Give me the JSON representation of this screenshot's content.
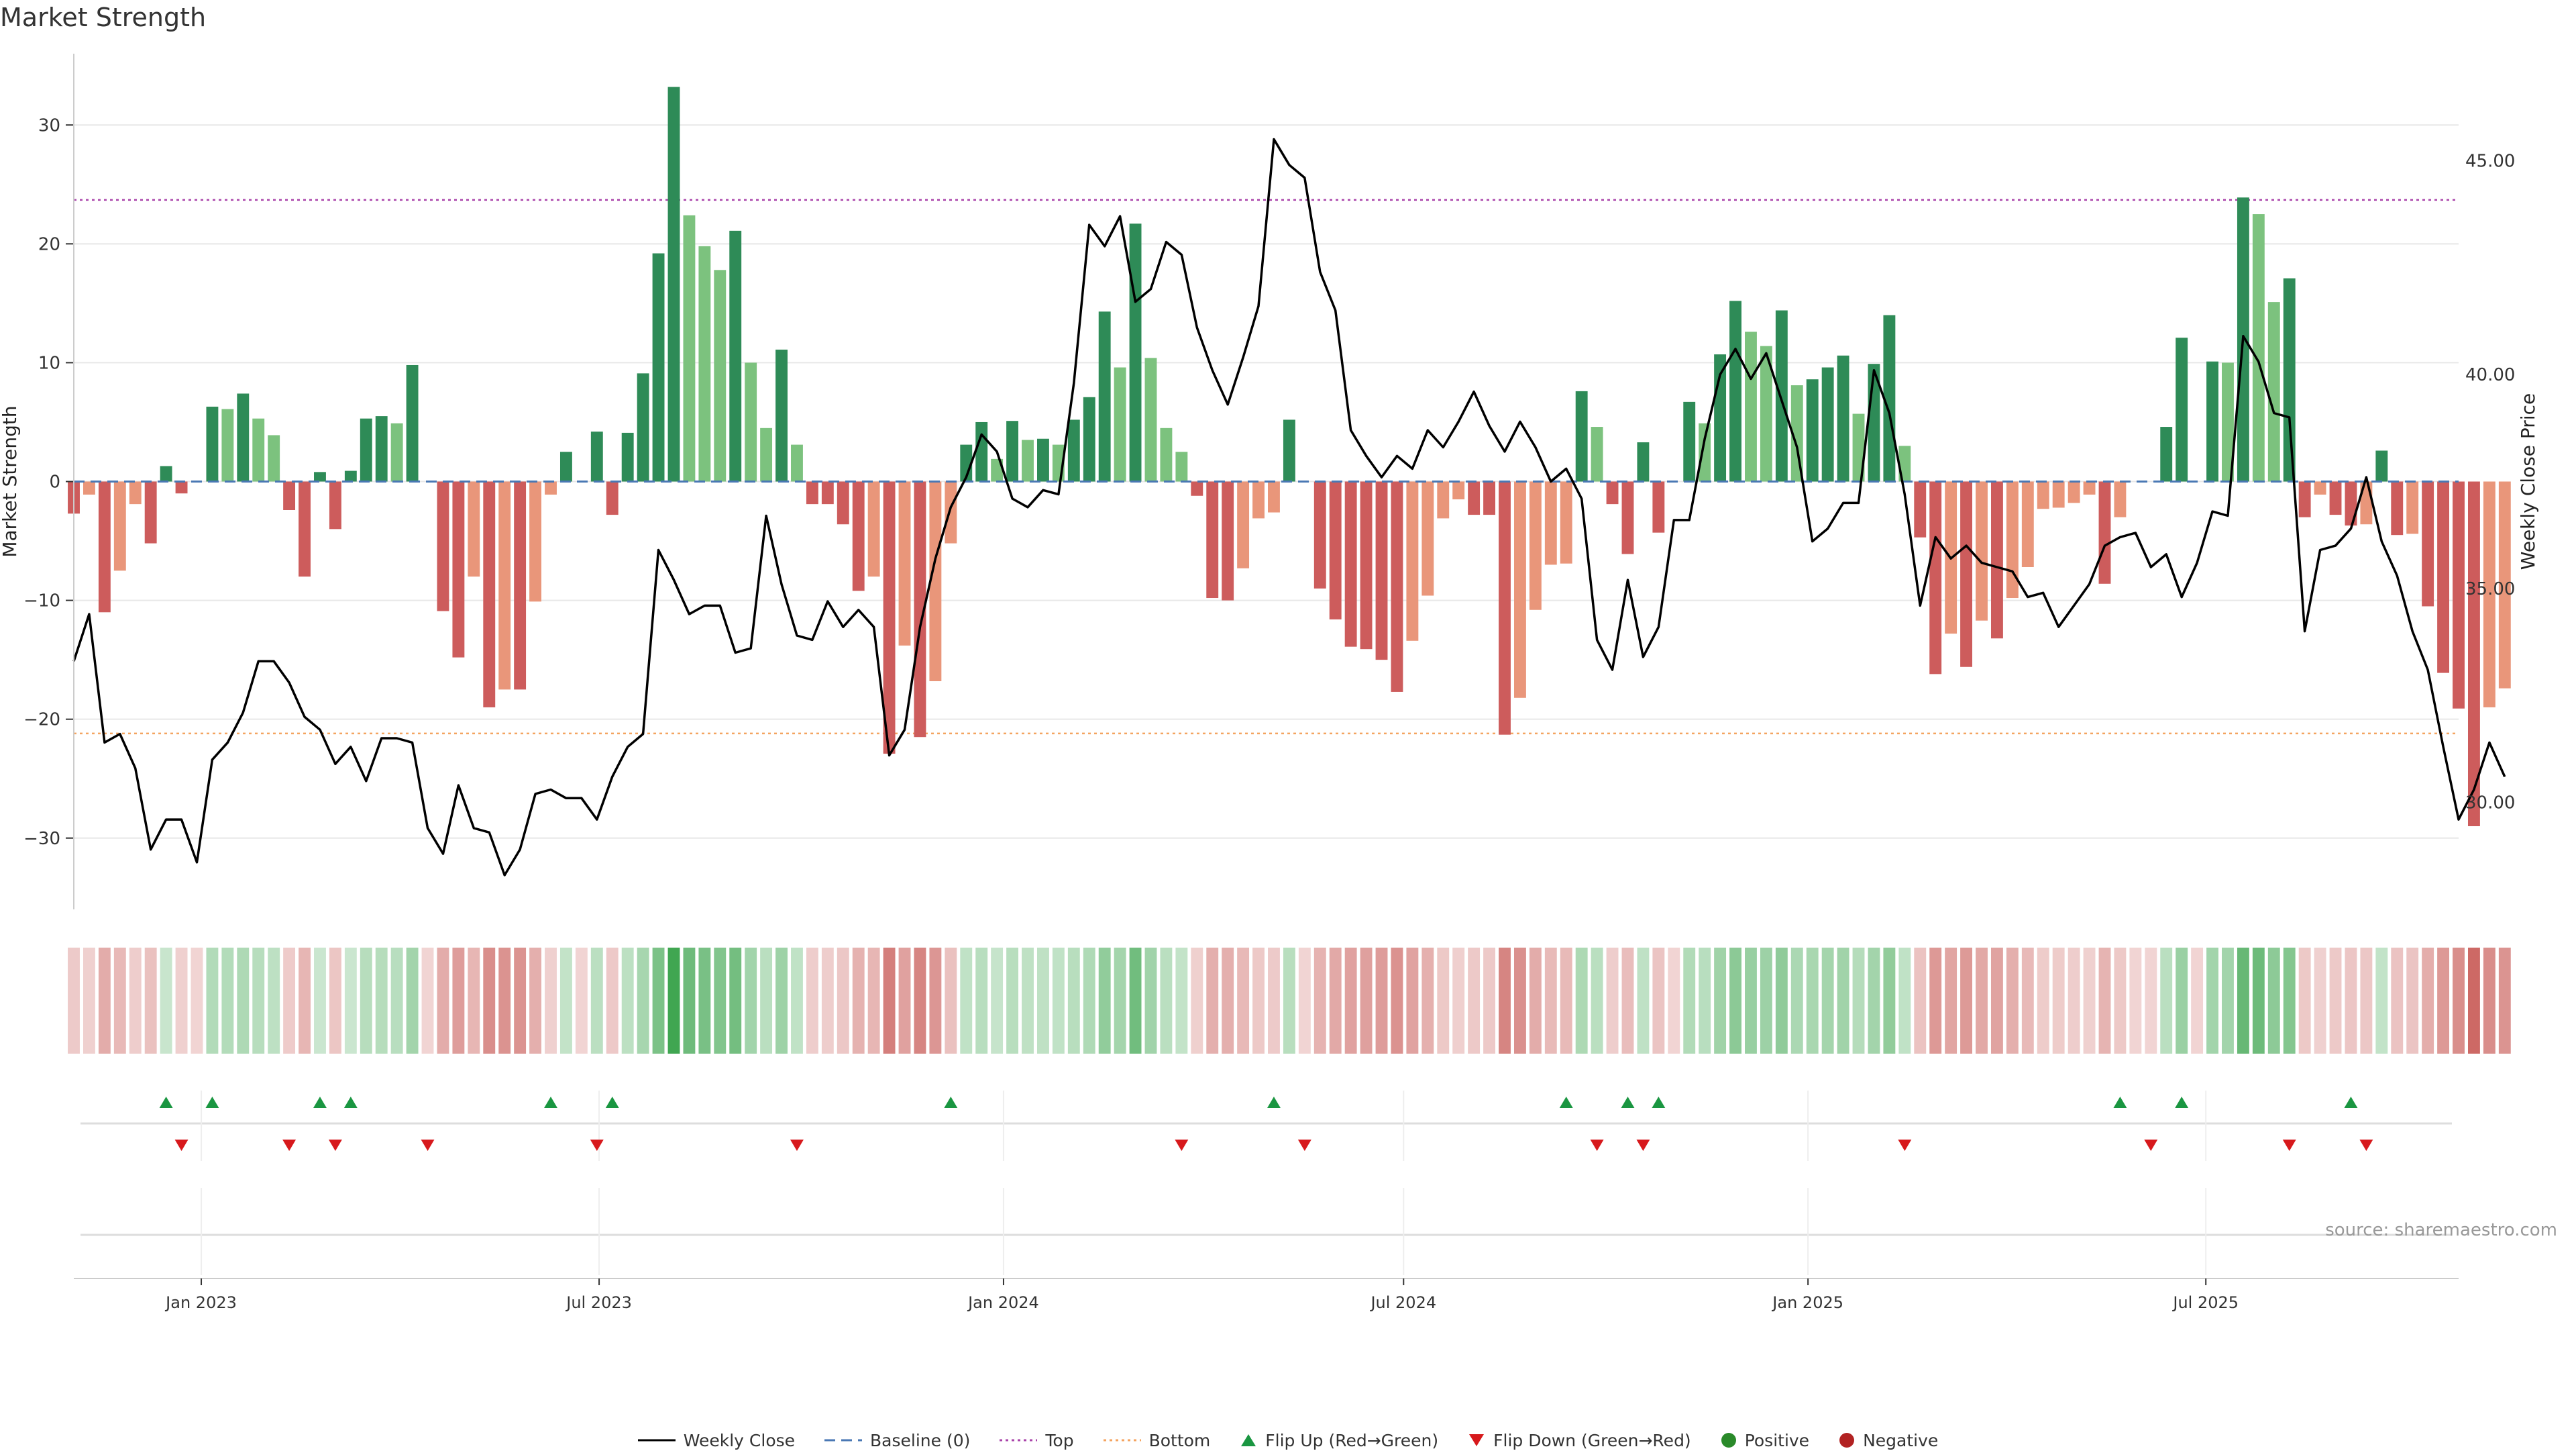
{
  "title": "Market Strength",
  "source_label": "source: sharemaestro.com",
  "colors": {
    "pos_dark": "#2e8b57",
    "pos_light": "#7cc27e",
    "neg_dark": "#cd5c5c",
    "neg_light": "#e9967a",
    "price_line": "#000000",
    "top_line": "#aa44aa",
    "bottom_line": "#f4a460",
    "baseline": "#4a78b4",
    "flip_up": "#1a9641",
    "flip_down": "#d7191c",
    "positive_dot": "#2a8a2a",
    "negative_dot": "#b22222"
  },
  "chart_data": {
    "type": "bar+line",
    "title": "Market Strength",
    "ylabel": "Market Strength",
    "y2label": "Weekly Close Price",
    "ylim": [
      -36,
      36
    ],
    "y_ticks": [
      30,
      20,
      10,
      0,
      -10,
      -20,
      -30
    ],
    "y_tick_labels": [
      "30",
      "20",
      "10",
      "0",
      "−10",
      "−20",
      "−30"
    ],
    "y2lim": [
      27.5,
      47.5
    ],
    "y2_ticks": [
      45.0,
      40.0,
      35.0,
      30.0
    ],
    "y2_tick_labels": [
      "45.00",
      "40.00",
      "35.00",
      "30.00"
    ],
    "top_threshold": 23.7,
    "bottom_threshold": -21.2,
    "x_start": "2022-11-04",
    "x_end": "2025-10-24",
    "x_ticks": [
      {
        "date": "2023-01-01",
        "label": "Jan 2023"
      },
      {
        "date": "2023-07-01",
        "label": "Jul 2023"
      },
      {
        "date": "2024-01-01",
        "label": "Jan 2024"
      },
      {
        "date": "2024-07-01",
        "label": "Jul 2024"
      },
      {
        "date": "2025-01-01",
        "label": "Jan 2025"
      },
      {
        "date": "2025-07-01",
        "label": "Jul 2025"
      }
    ],
    "strength_series": {
      "name": "Market Strength",
      "start": "2022-11-04",
      "interval_days": 7,
      "values": [
        -2.7,
        -1.1,
        -11.0,
        -7.5,
        -1.9,
        -5.2,
        1.3,
        -1.0,
        0,
        6.3,
        6.1,
        7.4,
        5.3,
        3.9,
        -2.4,
        -8.0,
        0.8,
        -4.0,
        0.9,
        5.3,
        5.5,
        4.9,
        9.8,
        0,
        -10.9,
        -14.8,
        -8.0,
        -19.0,
        -17.5,
        -17.5,
        -10.1,
        -1.1,
        2.5,
        0,
        4.2,
        -2.8,
        4.1,
        9.1,
        19.2,
        33.2,
        22.4,
        19.8,
        17.8,
        21.1,
        10.0,
        4.5,
        11.1,
        3.1,
        -1.9,
        -1.9,
        -3.6,
        -9.2,
        -8.0,
        -22.9,
        -13.8,
        -21.5,
        -16.8,
        -5.2,
        3.1,
        5.0,
        1.9,
        5.1,
        3.5,
        3.6,
        3.1,
        5.2,
        7.1,
        14.3,
        9.6,
        21.7,
        10.4,
        4.5,
        2.5,
        -1.2,
        -9.8,
        -10.0,
        -7.3,
        -3.1,
        -2.6,
        5.2,
        0,
        -9.0,
        -11.6,
        -13.9,
        -14.1,
        -15.0,
        -17.7,
        -13.4,
        -9.6,
        -3.1,
        -1.5,
        -2.8,
        -2.8,
        -21.3,
        -18.2,
        -10.8,
        -7.0,
        -6.9,
        7.6,
        4.6,
        -1.9,
        -6.1,
        3.3,
        -4.3,
        0,
        6.7,
        4.9,
        10.7,
        15.2,
        12.6,
        11.4,
        14.4,
        8.1,
        8.6,
        9.6,
        10.6,
        5.7,
        9.9,
        14.0,
        3.0,
        -4.7,
        -16.2,
        -12.8,
        -15.6,
        -11.7,
        -13.2,
        -9.8,
        -7.2,
        -2.3,
        -2.2,
        -1.8,
        -1.1,
        -8.6,
        -3.0,
        0,
        0,
        4.6,
        12.1,
        0,
        10.1,
        10.0,
        23.9,
        22.5,
        15.1,
        17.1,
        -3.0,
        -1.1,
        -2.8,
        -3.7,
        -3.6,
        2.6,
        -4.5,
        -4.4,
        -10.5,
        -16.1,
        -19.1,
        -29.0,
        -19.0,
        -17.4
      ]
    },
    "price_series": {
      "name": "Weekly Close",
      "start": "2022-11-04",
      "interval_days": 7,
      "values": [
        33.3,
        34.4,
        31.4,
        31.6,
        30.8,
        28.9,
        29.6,
        29.6,
        28.6,
        31.0,
        31.4,
        32.1,
        33.3,
        33.3,
        32.8,
        32.0,
        31.7,
        30.9,
        31.3,
        30.5,
        31.5,
        31.5,
        31.4,
        29.4,
        28.8,
        30.4,
        29.4,
        29.3,
        28.3,
        28.9,
        30.2,
        30.3,
        30.1,
        30.1,
        29.6,
        30.6,
        31.3,
        31.6,
        35.9,
        35.2,
        34.4,
        34.6,
        34.6,
        33.5,
        33.6,
        36.7,
        35.1,
        33.9,
        33.8,
        34.7,
        34.1,
        34.5,
        34.1,
        31.1,
        31.7,
        34.1,
        35.7,
        36.9,
        37.6,
        38.6,
        38.2,
        37.1,
        36.9,
        37.3,
        37.2,
        39.8,
        43.5,
        43.0,
        43.7,
        41.7,
        42.0,
        43.1,
        42.8,
        41.1,
        40.1,
        39.3,
        40.4,
        41.6,
        45.5,
        44.9,
        44.6,
        42.4,
        41.5,
        38.7,
        38.1,
        37.6,
        38.1,
        37.8,
        38.7,
        38.3,
        38.9,
        39.6,
        38.8,
        38.2,
        38.9,
        38.3,
        37.5,
        37.8,
        37.1,
        33.8,
        33.1,
        35.2,
        33.4,
        34.1,
        36.6,
        36.6,
        38.5,
        40.0,
        40.6,
        39.9,
        40.5,
        39.4,
        38.3,
        36.1,
        36.4,
        37.0,
        37.0,
        40.1,
        39.1,
        37.2,
        34.6,
        36.2,
        35.7,
        36.0,
        35.6,
        35.5,
        35.4,
        34.8,
        34.9,
        34.1,
        34.6,
        35.1,
        36.0,
        36.2,
        36.3,
        35.5,
        35.8,
        34.8,
        35.6,
        36.8,
        36.7,
        40.9,
        40.3,
        39.1,
        39.0,
        34.0,
        35.9,
        36.0,
        36.4,
        37.6,
        36.1,
        35.3,
        34.0,
        33.1,
        31.3,
        29.6,
        30.3,
        31.4,
        30.6
      ]
    },
    "flip_up_indices": [
      6,
      9,
      16,
      18,
      31,
      35,
      57,
      78,
      97,
      101,
      103,
      133,
      137,
      148
    ],
    "flip_down_indices": [
      7,
      14,
      17,
      23,
      34,
      47,
      72,
      80,
      99,
      102,
      119,
      135,
      144,
      149
    ],
    "legend": [
      "Weekly Close",
      "Baseline (0)",
      "Top",
      "Bottom",
      "Flip Up (Red→Green)",
      "Flip Down (Green→Red)",
      "Positive",
      "Negative"
    ]
  }
}
